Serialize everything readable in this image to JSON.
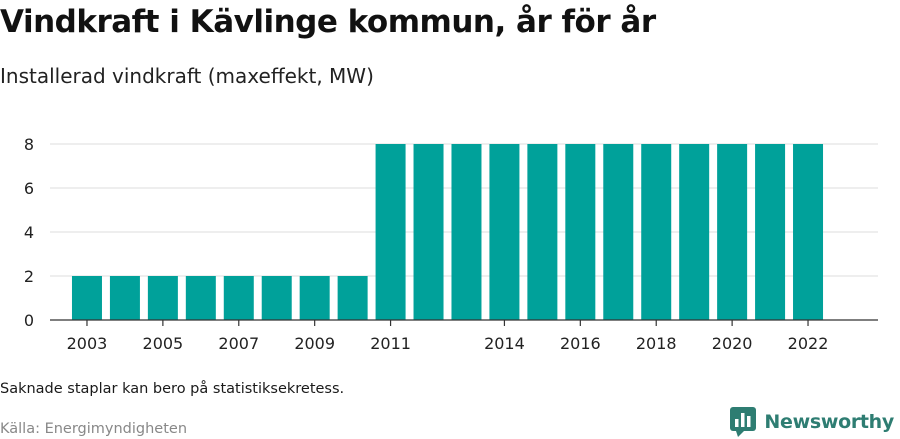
{
  "title": "Vindkraft i Kävlinge kommun, år för år",
  "subtitle": "Installerad vindkraft (maxeffekt, MW)",
  "note": "Saknade staplar kan bero på statistiksekretess.",
  "source": "Källa: Energimyndigheten",
  "brand": {
    "name": "Newsworthy",
    "icon": "newsworthy-chart-logo-icon",
    "color": "#2e7d72"
  },
  "chart_data": {
    "type": "bar",
    "categories": [
      "2003",
      "2004",
      "2005",
      "2006",
      "2007",
      "2008",
      "2009",
      "2010",
      "2011",
      "2012",
      "2013",
      "2014",
      "2015",
      "2016",
      "2017",
      "2018",
      "2019",
      "2020",
      "2021",
      "2022"
    ],
    "values": [
      2,
      2,
      2,
      2,
      2,
      2,
      2,
      2,
      8,
      8,
      8,
      8,
      8,
      8,
      8,
      8,
      8,
      8,
      8,
      8
    ],
    "x_tick_labels": [
      "2003",
      "2005",
      "2007",
      "2009",
      "2011",
      "2014",
      "2016",
      "2018",
      "2020",
      "2022"
    ],
    "y_ticks": [
      0,
      2,
      4,
      6,
      8
    ],
    "ylim": [
      0,
      8
    ],
    "grid": true,
    "bar_color": "#00a19a"
  }
}
